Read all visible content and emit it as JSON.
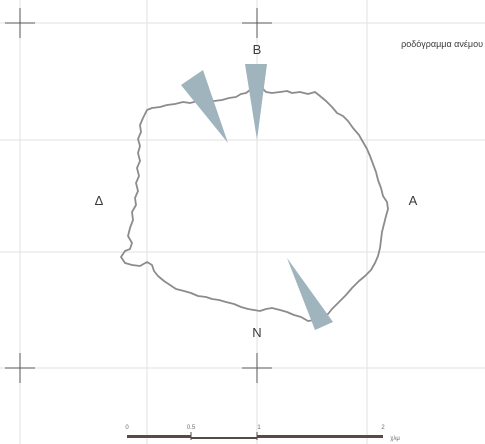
{
  "title": "ροδόγραμμα ανέμου",
  "compass": {
    "north": "Β",
    "south": "Ν",
    "east": "Α",
    "west": "Δ"
  },
  "scale_bar": {
    "ticks": [
      "0",
      "0.5",
      "1",
      "2"
    ],
    "unit": "χλμ"
  },
  "colors": {
    "wedge": "#9fb4bd",
    "outline": "#8c8c8c",
    "grid": "#e2e2e2",
    "scale_dark": "#5a4a45"
  }
}
